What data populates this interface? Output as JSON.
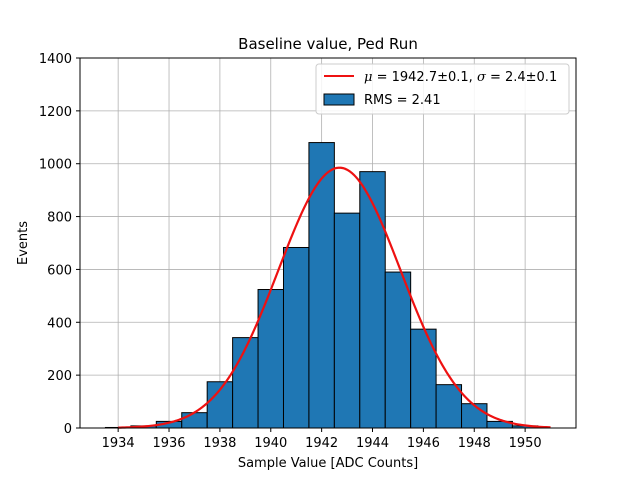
{
  "chart_data": {
    "type": "bar",
    "title": "Baseline value, Ped Run",
    "xlabel": "Sample Value [ADC Counts]",
    "ylabel": "Events",
    "xlim": [
      1932.5,
      1952.0
    ],
    "ylim": [
      0,
      1400
    ],
    "xticks": [
      1934,
      1936,
      1938,
      1940,
      1942,
      1944,
      1946,
      1948,
      1950
    ],
    "yticks": [
      0,
      200,
      400,
      600,
      800,
      1000,
      1200,
      1400
    ],
    "grid": true,
    "legend_position": "top-right",
    "bin_width": 1,
    "histogram": {
      "bin_centers": [
        1934,
        1935,
        1936,
        1937,
        1938,
        1939,
        1940,
        1941,
        1942,
        1943,
        1944,
        1945,
        1946,
        1947,
        1948,
        1949,
        1950
      ],
      "counts": [
        2,
        8,
        25,
        58,
        175,
        342,
        524,
        683,
        1080,
        813,
        970,
        590,
        374,
        164,
        92,
        25,
        8
      ],
      "color": "#1f77b4",
      "edge_color": "#000000"
    },
    "fit": {
      "mu": 1942.7,
      "sigma": 2.4,
      "amplitude": 985,
      "x_range": [
        1934,
        1951
      ],
      "color": "#ee1111"
    },
    "legend": {
      "fit_label": {
        "mu_sym": "μ",
        "mu_text": " = 1942.7±0.1, ",
        "sigma_sym": "σ",
        "sigma_text": " = 2.4±0.1"
      },
      "hist_label": "RMS = 2.41"
    }
  }
}
